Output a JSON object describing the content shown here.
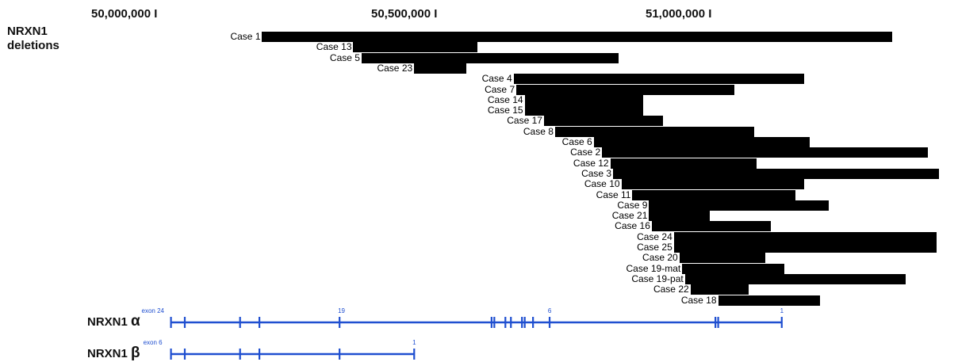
{
  "coordinates": [
    {
      "label": "50,000,000 I",
      "position_bp": 50000000
    },
    {
      "label": "50,500,000 I",
      "position_bp": 50500000
    },
    {
      "label": "51,000,000 I",
      "position_bp": 51000000
    }
  ],
  "title_line1": "NRXN1",
  "title_line2": "deletions",
  "colors": {
    "deletion_bar": "#000000",
    "gene_model": "#1f4fd0",
    "text": "#111111"
  },
  "deletions": [
    {
      "label": "Case 1",
      "start_bp": 50170000,
      "end_bp": 51310000
    },
    {
      "label": "Case 13",
      "start_bp": 50335000,
      "end_bp": 50560000
    },
    {
      "label": "Case 5",
      "start_bp": 50350000,
      "end_bp": 50815000
    },
    {
      "label": "Case 23",
      "start_bp": 50445000,
      "end_bp": 50540000
    },
    {
      "label": "Case 4",
      "start_bp": 50625000,
      "end_bp": 51150000
    },
    {
      "label": "Case 7",
      "start_bp": 50630000,
      "end_bp": 51025000
    },
    {
      "label": "Case 14",
      "start_bp": 50645000,
      "end_bp": 50860000
    },
    {
      "label": "Case 15",
      "start_bp": 50645000,
      "end_bp": 50860000
    },
    {
      "label": "Case 17",
      "start_bp": 50680000,
      "end_bp": 50895000
    },
    {
      "label": "Case 8",
      "start_bp": 50700000,
      "end_bp": 51060000
    },
    {
      "label": "Case 6",
      "start_bp": 50770000,
      "end_bp": 51160000
    },
    {
      "label": "Case 2",
      "start_bp": 50785000,
      "end_bp": 51375000
    },
    {
      "label": "Case 12",
      "start_bp": 50800000,
      "end_bp": 51065000
    },
    {
      "label": "Case 3",
      "start_bp": 50805000,
      "end_bp": 51395000
    },
    {
      "label": "Case 10",
      "start_bp": 50820000,
      "end_bp": 51150000
    },
    {
      "label": "Case 11",
      "start_bp": 50840000,
      "end_bp": 51135000
    },
    {
      "label": "Case 9",
      "start_bp": 50870000,
      "end_bp": 51195000
    },
    {
      "label": "Case 21",
      "start_bp": 50870000,
      "end_bp": 50980000
    },
    {
      "label": "Case 16",
      "start_bp": 50875000,
      "end_bp": 51090000
    },
    {
      "label": "Case 24",
      "start_bp": 50915000,
      "end_bp": 51390000
    },
    {
      "label": "Case 25",
      "start_bp": 50915000,
      "end_bp": 51390000
    },
    {
      "label": "Case 20",
      "start_bp": 50925000,
      "end_bp": 51080000
    },
    {
      "label": "Case 19-mat",
      "start_bp": 50930000,
      "end_bp": 51115000
    },
    {
      "label": "Case 19-pat",
      "start_bp": 50935000,
      "end_bp": 51335000
    },
    {
      "label": "Case 22",
      "start_bp": 50945000,
      "end_bp": 51050000
    },
    {
      "label": "Case 18",
      "start_bp": 50995000,
      "end_bp": 51180000
    }
  ],
  "genes": [
    {
      "name": "NRXN1",
      "greek": "α",
      "start_bp": 50005000,
      "end_bp": 51110000,
      "exons_bp": [
        50005000,
        50030000,
        50130000,
        50165000,
        50310000,
        50585000,
        50590000,
        50610000,
        50620000,
        50640000,
        50645000,
        50660000,
        50690000,
        50990000,
        50995000,
        51110000
      ],
      "exon_labels": [
        {
          "text": "exon 24",
          "position_bp": 49995000
        },
        {
          "text": "19",
          "position_bp": 50310000
        },
        {
          "text": "6",
          "position_bp": 50690000
        },
        {
          "text": "1",
          "position_bp": 51110000
        }
      ]
    },
    {
      "name": "NRXN1",
      "greek": "β",
      "start_bp": 50005000,
      "end_bp": 50445000,
      "exons_bp": [
        50005000,
        50030000,
        50130000,
        50165000,
        50310000,
        50445000
      ],
      "exon_labels": [
        {
          "text": "exon 6",
          "position_bp": 49998000
        },
        {
          "text": "1",
          "position_bp": 50445000
        }
      ]
    }
  ]
}
